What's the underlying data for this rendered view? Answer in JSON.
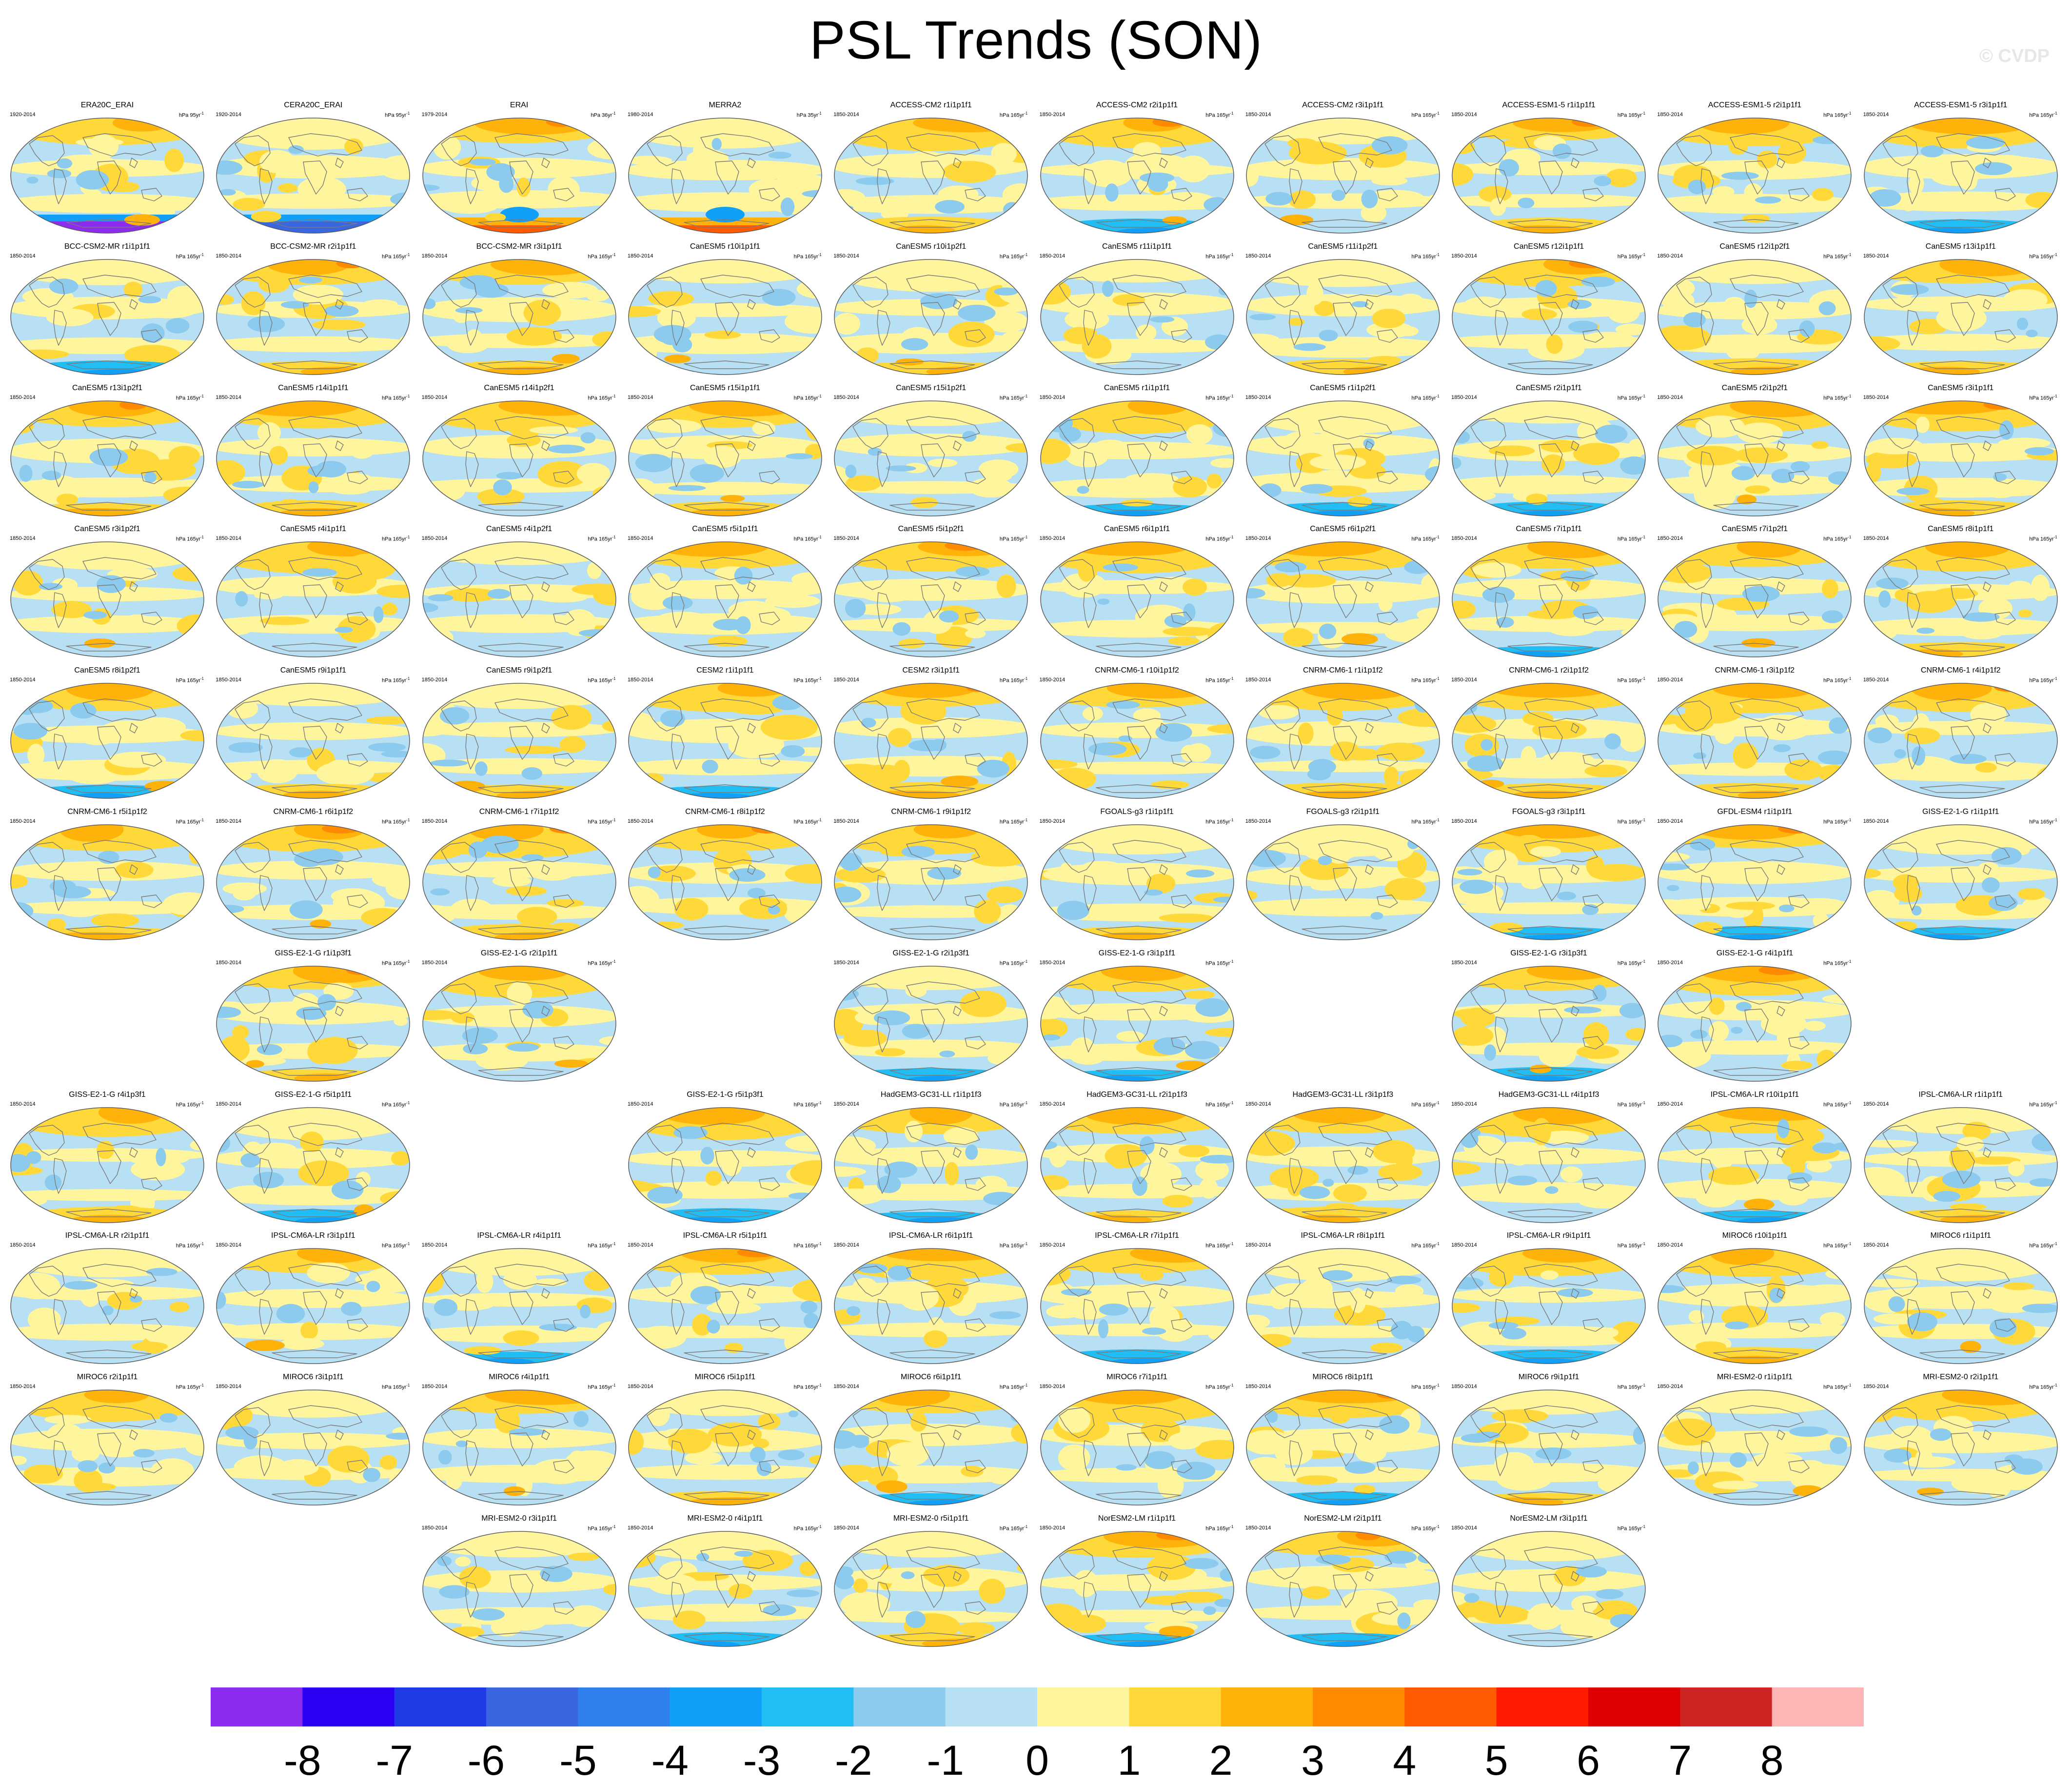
{
  "title": "PSL Trends (SON)",
  "watermark": "© CVDP",
  "chart_data": {
    "type": "heatmap",
    "variable": "PSL",
    "season": "SON",
    "title": "PSL Trends (SON)",
    "colorbar": {
      "labels": [
        "-8",
        "-7",
        "-6",
        "-5",
        "-4",
        "-3",
        "-2",
        "-1",
        "0",
        "1",
        "2",
        "3",
        "4",
        "5",
        "6",
        "7",
        "8"
      ],
      "colors": [
        "#8b2cee",
        "#2c00f2",
        "#1f3be6",
        "#3a66de",
        "#2f7fee",
        "#129ff8",
        "#21bdf5",
        "#8ccbee",
        "#b7e0f4",
        "#fff59c",
        "#ffd93a",
        "#ffb20a",
        "#ff8a00",
        "#ff5a00",
        "#ff1a00",
        "#dc0000",
        "#cf2424",
        "#ffb5b5"
      ]
    },
    "panels": [
      {
        "title": "ERA20C_ERAI",
        "years": "1920-2014",
        "unit": "hPa 95yr",
        "row": 0,
        "col": 0
      },
      {
        "title": "CERA20C_ERAI",
        "years": "1920-2014",
        "unit": "hPa 95yr",
        "row": 0,
        "col": 1
      },
      {
        "title": "ERAI",
        "years": "1979-2014",
        "unit": "hPa 36yr",
        "row": 0,
        "col": 2
      },
      {
        "title": "MERRA2",
        "years": "1980-2014",
        "unit": "hPa 35yr",
        "row": 0,
        "col": 3
      },
      {
        "title": "ACCESS-CM2 r1i1p1f1",
        "years": "1850-2014",
        "unit": "hPa 165yr",
        "row": 0,
        "col": 4
      },
      {
        "title": "ACCESS-CM2 r2i1p1f1",
        "years": "1850-2014",
        "unit": "hPa 165yr",
        "row": 0,
        "col": 5
      },
      {
        "title": "ACCESS-CM2 r3i1p1f1",
        "years": "1850-2014",
        "unit": "hPa 165yr",
        "row": 0,
        "col": 6
      },
      {
        "title": "ACCESS-ESM1-5 r1i1p1f1",
        "years": "1850-2014",
        "unit": "hPa 165yr",
        "row": 0,
        "col": 7
      },
      {
        "title": "ACCESS-ESM1-5 r2i1p1f1",
        "years": "1850-2014",
        "unit": "hPa 165yr",
        "row": 0,
        "col": 8
      },
      {
        "title": "ACCESS-ESM1-5 r3i1p1f1",
        "years": "1850-2014",
        "unit": "hPa 165yr",
        "row": 0,
        "col": 9
      },
      {
        "title": "BCC-CSM2-MR r1i1p1f1",
        "years": "1850-2014",
        "unit": "hPa 165yr",
        "row": 1,
        "col": 0
      },
      {
        "title": "BCC-CSM2-MR r2i1p1f1",
        "years": "1850-2014",
        "unit": "hPa 165yr",
        "row": 1,
        "col": 1
      },
      {
        "title": "BCC-CSM2-MR r3i1p1f1",
        "years": "1850-2014",
        "unit": "hPa 165yr",
        "row": 1,
        "col": 2
      },
      {
        "title": "CanESM5 r10i1p1f1",
        "years": "1850-2014",
        "unit": "hPa 165yr",
        "row": 1,
        "col": 3
      },
      {
        "title": "CanESM5 r10i1p2f1",
        "years": "1850-2014",
        "unit": "hPa 165yr",
        "row": 1,
        "col": 4
      },
      {
        "title": "CanESM5 r11i1p1f1",
        "years": "1850-2014",
        "unit": "hPa 165yr",
        "row": 1,
        "col": 5
      },
      {
        "title": "CanESM5 r11i1p2f1",
        "years": "1850-2014",
        "unit": "hPa 165yr",
        "row": 1,
        "col": 6
      },
      {
        "title": "CanESM5 r12i1p1f1",
        "years": "1850-2014",
        "unit": "hPa 165yr",
        "row": 1,
        "col": 7
      },
      {
        "title": "CanESM5 r12i1p2f1",
        "years": "1850-2014",
        "unit": "hPa 165yr",
        "row": 1,
        "col": 8
      },
      {
        "title": "CanESM5 r13i1p1f1",
        "years": "1850-2014",
        "unit": "hPa 165yr",
        "row": 1,
        "col": 9
      },
      {
        "title": "CanESM5 r13i1p2f1",
        "years": "1850-2014",
        "unit": "hPa 165yr",
        "row": 2,
        "col": 0
      },
      {
        "title": "CanESM5 r14i1p1f1",
        "years": "1850-2014",
        "unit": "hPa 165yr",
        "row": 2,
        "col": 1
      },
      {
        "title": "CanESM5 r14i1p2f1",
        "years": "1850-2014",
        "unit": "hPa 165yr",
        "row": 2,
        "col": 2
      },
      {
        "title": "CanESM5 r15i1p1f1",
        "years": "1850-2014",
        "unit": "hPa 165yr",
        "row": 2,
        "col": 3
      },
      {
        "title": "CanESM5 r15i1p2f1",
        "years": "1850-2014",
        "unit": "hPa 165yr",
        "row": 2,
        "col": 4
      },
      {
        "title": "CanESM5 r1i1p1f1",
        "years": "1850-2014",
        "unit": "hPa 165yr",
        "row": 2,
        "col": 5
      },
      {
        "title": "CanESM5 r1i1p2f1",
        "years": "1850-2014",
        "unit": "hPa 165yr",
        "row": 2,
        "col": 6
      },
      {
        "title": "CanESM5 r2i1p1f1",
        "years": "1850-2014",
        "unit": "hPa 165yr",
        "row": 2,
        "col": 7
      },
      {
        "title": "CanESM5 r2i1p2f1",
        "years": "1850-2014",
        "unit": "hPa 165yr",
        "row": 2,
        "col": 8
      },
      {
        "title": "CanESM5 r3i1p1f1",
        "years": "1850-2014",
        "unit": "hPa 165yr",
        "row": 2,
        "col": 9
      },
      {
        "title": "CanESM5 r3i1p2f1",
        "years": "1850-2014",
        "unit": "hPa 165yr",
        "row": 3,
        "col": 0
      },
      {
        "title": "CanESM5 r4i1p1f1",
        "years": "1850-2014",
        "unit": "hPa 165yr",
        "row": 3,
        "col": 1
      },
      {
        "title": "CanESM5 r4i1p2f1",
        "years": "1850-2014",
        "unit": "hPa 165yr",
        "row": 3,
        "col": 2
      },
      {
        "title": "CanESM5 r5i1p1f1",
        "years": "1850-2014",
        "unit": "hPa 165yr",
        "row": 3,
        "col": 3
      },
      {
        "title": "CanESM5 r5i1p2f1",
        "years": "1850-2014",
        "unit": "hPa 165yr",
        "row": 3,
        "col": 4
      },
      {
        "title": "CanESM5 r6i1p1f1",
        "years": "1850-2014",
        "unit": "hPa 165yr",
        "row": 3,
        "col": 5
      },
      {
        "title": "CanESM5 r6i1p2f1",
        "years": "1850-2014",
        "unit": "hPa 165yr",
        "row": 3,
        "col": 6
      },
      {
        "title": "CanESM5 r7i1p1f1",
        "years": "1850-2014",
        "unit": "hPa 165yr",
        "row": 3,
        "col": 7
      },
      {
        "title": "CanESM5 r7i1p2f1",
        "years": "1850-2014",
        "unit": "hPa 165yr",
        "row": 3,
        "col": 8
      },
      {
        "title": "CanESM5 r8i1p1f1",
        "years": "1850-2014",
        "unit": "hPa 165yr",
        "row": 3,
        "col": 9
      },
      {
        "title": "CanESM5 r8i1p2f1",
        "years": "1850-2014",
        "unit": "hPa 165yr",
        "row": 4,
        "col": 0
      },
      {
        "title": "CanESM5 r9i1p1f1",
        "years": "1850-2014",
        "unit": "hPa 165yr",
        "row": 4,
        "col": 1
      },
      {
        "title": "CanESM5 r9i1p2f1",
        "years": "1850-2014",
        "unit": "hPa 165yr",
        "row": 4,
        "col": 2
      },
      {
        "title": "CESM2 r1i1p1f1",
        "years": "1850-2014",
        "unit": "hPa 165yr",
        "row": 4,
        "col": 3
      },
      {
        "title": "CESM2 r3i1p1f1",
        "years": "1850-2014",
        "unit": "hPa 165yr",
        "row": 4,
        "col": 4
      },
      {
        "title": "CNRM-CM6-1 r10i1p1f2",
        "years": "1850-2014",
        "unit": "hPa 165yr",
        "row": 4,
        "col": 5
      },
      {
        "title": "CNRM-CM6-1 r1i1p1f2",
        "years": "1850-2014",
        "unit": "hPa 165yr",
        "row": 4,
        "col": 6
      },
      {
        "title": "CNRM-CM6-1 r2i1p1f2",
        "years": "1850-2014",
        "unit": "hPa 165yr",
        "row": 4,
        "col": 7
      },
      {
        "title": "CNRM-CM6-1 r3i1p1f2",
        "years": "1850-2014",
        "unit": "hPa 165yr",
        "row": 4,
        "col": 8
      },
      {
        "title": "CNRM-CM6-1 r4i1p1f2",
        "years": "1850-2014",
        "unit": "hPa 165yr",
        "row": 4,
        "col": 9
      },
      {
        "title": "CNRM-CM6-1 r5i1p1f2",
        "years": "1850-2014",
        "unit": "hPa 165yr",
        "row": 5,
        "col": 0
      },
      {
        "title": "CNRM-CM6-1 r6i1p1f2",
        "years": "1850-2014",
        "unit": "hPa 165yr",
        "row": 5,
        "col": 1
      },
      {
        "title": "CNRM-CM6-1 r7i1p1f2",
        "years": "1850-2014",
        "unit": "hPa 165yr",
        "row": 5,
        "col": 2
      },
      {
        "title": "CNRM-CM6-1 r8i1p1f2",
        "years": "1850-2014",
        "unit": "hPa 165yr",
        "row": 5,
        "col": 3
      },
      {
        "title": "CNRM-CM6-1 r9i1p1f2",
        "years": "1850-2014",
        "unit": "hPa 165yr",
        "row": 5,
        "col": 4
      },
      {
        "title": "FGOALS-g3 r1i1p1f1",
        "years": "1850-2014",
        "unit": "hPa 165yr",
        "row": 5,
        "col": 5
      },
      {
        "title": "FGOALS-g3 r2i1p1f1",
        "years": "1850-2014",
        "unit": "hPa 165yr",
        "row": 5,
        "col": 6
      },
      {
        "title": "FGOALS-g3 r3i1p1f1",
        "years": "1850-2014",
        "unit": "hPa 165yr",
        "row": 5,
        "col": 7
      },
      {
        "title": "GFDL-ESM4 r1i1p1f1",
        "years": "1850-2014",
        "unit": "hPa 165yr",
        "row": 5,
        "col": 8
      },
      {
        "title": "GISS-E2-1-G r1i1p1f1",
        "years": "1850-2014",
        "unit": "hPa 165yr",
        "row": 5,
        "col": 9
      },
      {
        "title": "GISS-E2-1-G r1i1p3f1",
        "years": "1850-2014",
        "unit": "hPa 165yr",
        "row": 6,
        "col": 1
      },
      {
        "title": "GISS-E2-1-G r2i1p1f1",
        "years": "1850-2014",
        "unit": "hPa 165yr",
        "row": 6,
        "col": 2
      },
      {
        "title": "GISS-E2-1-G r2i1p3f1",
        "years": "1850-2014",
        "unit": "hPa 165yr",
        "row": 6,
        "col": 4
      },
      {
        "title": "GISS-E2-1-G r3i1p1f1",
        "years": "1850-2014",
        "unit": "hPa 165yr",
        "row": 6,
        "col": 5
      },
      {
        "title": "GISS-E2-1-G r3i1p3f1",
        "years": "1850-2014",
        "unit": "hPa 165yr",
        "row": 6,
        "col": 7
      },
      {
        "title": "GISS-E2-1-G r4i1p1f1",
        "years": "1850-2014",
        "unit": "hPa 165yr",
        "row": 6,
        "col": 8
      },
      {
        "title": "GISS-E2-1-G r4i1p3f1",
        "years": "1850-2014",
        "unit": "hPa 165yr",
        "row": 7,
        "col": 0
      },
      {
        "title": "GISS-E2-1-G r5i1p1f1",
        "years": "1850-2014",
        "unit": "hPa 165yr",
        "row": 7,
        "col": 1
      },
      {
        "title": "GISS-E2-1-G r5i1p3f1",
        "years": "1850-2014",
        "unit": "hPa 165yr",
        "row": 7,
        "col": 3
      },
      {
        "title": "HadGEM3-GC31-LL r1i1p1f3",
        "years": "1850-2014",
        "unit": "hPa 165yr",
        "row": 7,
        "col": 4
      },
      {
        "title": "HadGEM3-GC31-LL r2i1p1f3",
        "years": "1850-2014",
        "unit": "hPa 165yr",
        "row": 7,
        "col": 5
      },
      {
        "title": "HadGEM3-GC31-LL r3i1p1f3",
        "years": "1850-2014",
        "unit": "hPa 165yr",
        "row": 7,
        "col": 6
      },
      {
        "title": "HadGEM3-GC31-LL r4i1p1f3",
        "years": "1850-2014",
        "unit": "hPa 165yr",
        "row": 7,
        "col": 7
      },
      {
        "title": "IPSL-CM6A-LR r10i1p1f1",
        "years": "1850-2014",
        "unit": "hPa 165yr",
        "row": 7,
        "col": 8
      },
      {
        "title": "IPSL-CM6A-LR r1i1p1f1",
        "years": "1850-2014",
        "unit": "hPa 165yr",
        "row": 7,
        "col": 9
      },
      {
        "title": "IPSL-CM6A-LR r2i1p1f1",
        "years": "1850-2014",
        "unit": "hPa 165yr",
        "row": 8,
        "col": 0
      },
      {
        "title": "IPSL-CM6A-LR r3i1p1f1",
        "years": "1850-2014",
        "unit": "hPa 165yr",
        "row": 8,
        "col": 1
      },
      {
        "title": "IPSL-CM6A-LR r4i1p1f1",
        "years": "1850-2014",
        "unit": "hPa 165yr",
        "row": 8,
        "col": 2
      },
      {
        "title": "IPSL-CM6A-LR r5i1p1f1",
        "years": "1850-2014",
        "unit": "hPa 165yr",
        "row": 8,
        "col": 3
      },
      {
        "title": "IPSL-CM6A-LR r6i1p1f1",
        "years": "1850-2014",
        "unit": "hPa 165yr",
        "row": 8,
        "col": 4
      },
      {
        "title": "IPSL-CM6A-LR r7i1p1f1",
        "years": "1850-2014",
        "unit": "hPa 165yr",
        "row": 8,
        "col": 5
      },
      {
        "title": "IPSL-CM6A-LR r8i1p1f1",
        "years": "1850-2014",
        "unit": "hPa 165yr",
        "row": 8,
        "col": 6
      },
      {
        "title": "IPSL-CM6A-LR r9i1p1f1",
        "years": "1850-2014",
        "unit": "hPa 165yr",
        "row": 8,
        "col": 7
      },
      {
        "title": "MIROC6 r10i1p1f1",
        "years": "1850-2014",
        "unit": "hPa 165yr",
        "row": 8,
        "col": 8
      },
      {
        "title": "MIROC6 r1i1p1f1",
        "years": "1850-2014",
        "unit": "hPa 165yr",
        "row": 8,
        "col": 9
      },
      {
        "title": "MIROC6 r2i1p1f1",
        "years": "1850-2014",
        "unit": "hPa 165yr",
        "row": 9,
        "col": 0
      },
      {
        "title": "MIROC6 r3i1p1f1",
        "years": "1850-2014",
        "unit": "hPa 165yr",
        "row": 9,
        "col": 1
      },
      {
        "title": "MIROC6 r4i1p1f1",
        "years": "1850-2014",
        "unit": "hPa 165yr",
        "row": 9,
        "col": 2
      },
      {
        "title": "MIROC6 r5i1p1f1",
        "years": "1850-2014",
        "unit": "hPa 165yr",
        "row": 9,
        "col": 3
      },
      {
        "title": "MIROC6 r6i1p1f1",
        "years": "1850-2014",
        "unit": "hPa 165yr",
        "row": 9,
        "col": 4
      },
      {
        "title": "MIROC6 r7i1p1f1",
        "years": "1850-2014",
        "unit": "hPa 165yr",
        "row": 9,
        "col": 5
      },
      {
        "title": "MIROC6 r8i1p1f1",
        "years": "1850-2014",
        "unit": "hPa 165yr",
        "row": 9,
        "col": 6
      },
      {
        "title": "MIROC6 r9i1p1f1",
        "years": "1850-2014",
        "unit": "hPa 165yr",
        "row": 9,
        "col": 7
      },
      {
        "title": "MRI-ESM2-0 r1i1p1f1",
        "years": "1850-2014",
        "unit": "hPa 165yr",
        "row": 9,
        "col": 8
      },
      {
        "title": "MRI-ESM2-0 r2i1p1f1",
        "years": "1850-2014",
        "unit": "hPa 165yr",
        "row": 9,
        "col": 9
      },
      {
        "title": "MRI-ESM2-0 r3i1p1f1",
        "years": "1850-2014",
        "unit": "hPa 165yr",
        "row": 10,
        "col": 2
      },
      {
        "title": "MRI-ESM2-0 r4i1p1f1",
        "years": "1850-2014",
        "unit": "hPa 165yr",
        "row": 10,
        "col": 3
      },
      {
        "title": "MRI-ESM2-0 r5i1p1f1",
        "years": "1850-2014",
        "unit": "hPa 165yr",
        "row": 10,
        "col": 4
      },
      {
        "title": "NorESM2-LM r1i1p1f1",
        "years": "1850-2014",
        "unit": "hPa 165yr",
        "row": 10,
        "col": 5
      },
      {
        "title": "NorESM2-LM r2i1p1f1",
        "years": "1850-2014",
        "unit": "hPa 165yr",
        "row": 10,
        "col": 6
      },
      {
        "title": "NorESM2-LM r3i1p1f1",
        "years": "1850-2014",
        "unit": "hPa 165yr",
        "row": 10,
        "col": 7
      }
    ]
  }
}
